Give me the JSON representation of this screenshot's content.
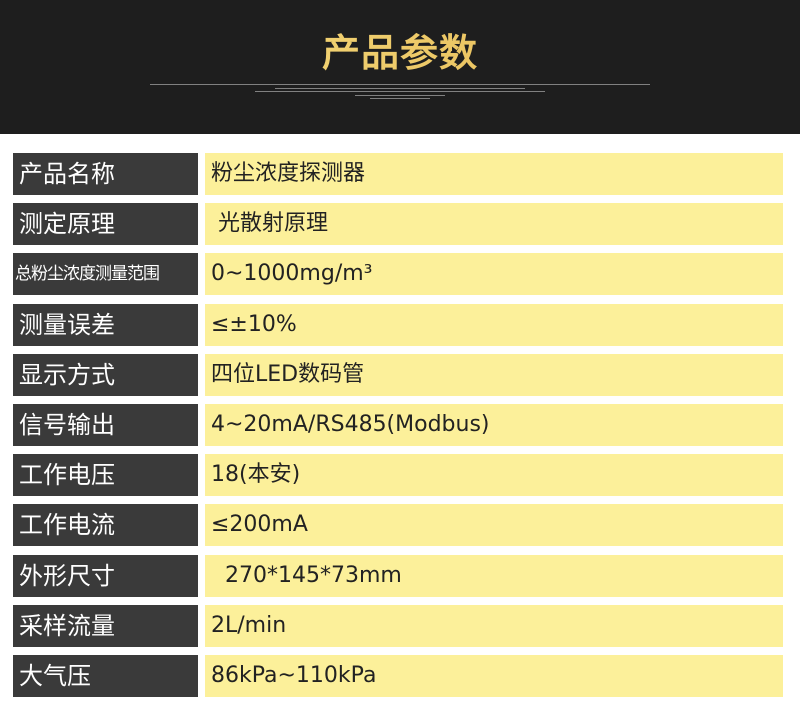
{
  "header": {
    "title": "产品参数"
  },
  "rows": [
    {
      "label": "产品名称",
      "value": "粉尘浓度探测器"
    },
    {
      "label": "测定原理",
      "value": " 光散射原理"
    },
    {
      "label": "总粉尘浓度测量范围",
      "value": "0~1000mg/m³"
    },
    {
      "label": "测量误差",
      "value": "≤±10%"
    },
    {
      "label": "显示方式",
      "value": "四位LED数码管"
    },
    {
      "label": "信号输出",
      "value": "4~20mA/RS485(Modbus)"
    },
    {
      "label": "工作电压",
      "value": "18(本安)"
    },
    {
      "label": "工作电流",
      "value": "≤200mA"
    },
    {
      "label": "外形尺寸",
      "value": "  270*145*73mm"
    },
    {
      "label": "采样流量",
      "value": "2L/min"
    },
    {
      "label": "大气压",
      "value": "86kPa~110kPa"
    }
  ],
  "colors": {
    "header_bg": "#1e1e1e",
    "title": "#f0c75a",
    "label_bg": "#3a3a3a",
    "value_bg": "#fcf09a"
  }
}
